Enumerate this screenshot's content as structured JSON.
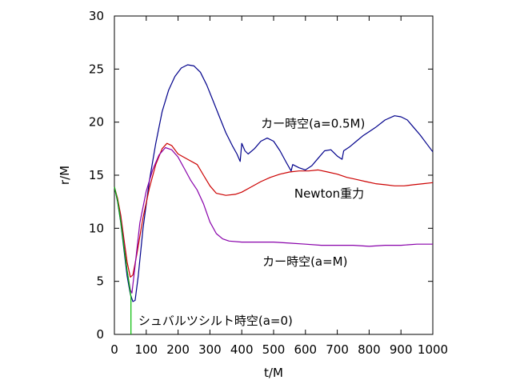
{
  "chart_data": {
    "type": "line",
    "title": "",
    "xlabel": "t/M",
    "ylabel": "r/M",
    "xlim": [
      0,
      1000
    ],
    "ylim": [
      0,
      30
    ],
    "xticks": [
      0,
      100,
      200,
      300,
      400,
      500,
      600,
      700,
      800,
      900,
      1000
    ],
    "yticks": [
      0,
      5,
      10,
      15,
      20,
      25,
      30
    ],
    "grid": false,
    "legend": "none",
    "series": [
      {
        "name": "カー時空(a=0.5M)",
        "color": "#00008b",
        "points": [
          [
            0,
            13.9
          ],
          [
            10,
            12.5
          ],
          [
            20,
            10.5
          ],
          [
            30,
            8.0
          ],
          [
            40,
            5.5
          ],
          [
            50,
            3.8
          ],
          [
            58,
            3.1
          ],
          [
            65,
            3.2
          ],
          [
            75,
            5.5
          ],
          [
            90,
            10.0
          ],
          [
            110,
            14.5
          ],
          [
            130,
            18.0
          ],
          [
            150,
            21.0
          ],
          [
            170,
            23.0
          ],
          [
            190,
            24.3
          ],
          [
            210,
            25.1
          ],
          [
            230,
            25.4
          ],
          [
            250,
            25.3
          ],
          [
            270,
            24.7
          ],
          [
            290,
            23.5
          ],
          [
            310,
            22.0
          ],
          [
            330,
            20.5
          ],
          [
            350,
            19.0
          ],
          [
            370,
            17.8
          ],
          [
            385,
            17.0
          ],
          [
            395,
            16.3
          ],
          [
            400,
            18.0
          ],
          [
            410,
            17.3
          ],
          [
            420,
            17.0
          ],
          [
            440,
            17.5
          ],
          [
            460,
            18.2
          ],
          [
            480,
            18.5
          ],
          [
            500,
            18.2
          ],
          [
            520,
            17.3
          ],
          [
            540,
            16.2
          ],
          [
            555,
            15.4
          ],
          [
            560,
            16.0
          ],
          [
            580,
            15.7
          ],
          [
            600,
            15.5
          ],
          [
            620,
            15.9
          ],
          [
            640,
            16.6
          ],
          [
            660,
            17.3
          ],
          [
            680,
            17.4
          ],
          [
            700,
            16.8
          ],
          [
            715,
            16.5
          ],
          [
            720,
            17.3
          ],
          [
            740,
            17.7
          ],
          [
            760,
            18.2
          ],
          [
            780,
            18.7
          ],
          [
            800,
            19.1
          ],
          [
            820,
            19.5
          ],
          [
            850,
            20.2
          ],
          [
            880,
            20.6
          ],
          [
            900,
            20.5
          ],
          [
            920,
            20.2
          ],
          [
            940,
            19.5
          ],
          [
            960,
            18.8
          ],
          [
            980,
            18.0
          ],
          [
            1000,
            17.2
          ]
        ]
      },
      {
        "name": "Newton重力",
        "color": "#cc0000",
        "points": [
          [
            0,
            13.9
          ],
          [
            10,
            12.8
          ],
          [
            20,
            11.2
          ],
          [
            30,
            9.0
          ],
          [
            40,
            6.8
          ],
          [
            50,
            5.4
          ],
          [
            58,
            5.6
          ],
          [
            70,
            7.5
          ],
          [
            90,
            11.0
          ],
          [
            110,
            13.8
          ],
          [
            130,
            16.0
          ],
          [
            150,
            17.5
          ],
          [
            165,
            18.0
          ],
          [
            180,
            17.8
          ],
          [
            200,
            17.0
          ],
          [
            230,
            16.5
          ],
          [
            260,
            16.0
          ],
          [
            280,
            15.0
          ],
          [
            300,
            14.0
          ],
          [
            320,
            13.3
          ],
          [
            350,
            13.1
          ],
          [
            380,
            13.2
          ],
          [
            400,
            13.4
          ],
          [
            430,
            13.9
          ],
          [
            460,
            14.4
          ],
          [
            490,
            14.8
          ],
          [
            520,
            15.1
          ],
          [
            550,
            15.3
          ],
          [
            580,
            15.4
          ],
          [
            610,
            15.4
          ],
          [
            640,
            15.5
          ],
          [
            670,
            15.3
          ],
          [
            700,
            15.1
          ],
          [
            730,
            14.8
          ],
          [
            760,
            14.6
          ],
          [
            790,
            14.4
          ],
          [
            820,
            14.2
          ],
          [
            850,
            14.1
          ],
          [
            880,
            14.0
          ],
          [
            910,
            14.0
          ],
          [
            940,
            14.1
          ],
          [
            970,
            14.2
          ],
          [
            1000,
            14.3
          ]
        ]
      },
      {
        "name": "カー時空(a=M)",
        "color": "#8800aa",
        "points": [
          [
            0,
            13.9
          ],
          [
            10,
            12.6
          ],
          [
            20,
            10.8
          ],
          [
            30,
            8.5
          ],
          [
            40,
            6.0
          ],
          [
            50,
            4.2
          ],
          [
            55,
            3.9
          ],
          [
            65,
            6.5
          ],
          [
            80,
            10.5
          ],
          [
            100,
            13.5
          ],
          [
            120,
            15.5
          ],
          [
            140,
            16.9
          ],
          [
            160,
            17.6
          ],
          [
            180,
            17.4
          ],
          [
            200,
            16.7
          ],
          [
            220,
            15.6
          ],
          [
            240,
            14.5
          ],
          [
            260,
            13.6
          ],
          [
            280,
            12.3
          ],
          [
            300,
            10.6
          ],
          [
            320,
            9.5
          ],
          [
            340,
            9.0
          ],
          [
            360,
            8.8
          ],
          [
            400,
            8.7
          ],
          [
            450,
            8.7
          ],
          [
            500,
            8.7
          ],
          [
            550,
            8.6
          ],
          [
            600,
            8.5
          ],
          [
            650,
            8.4
          ],
          [
            700,
            8.4
          ],
          [
            750,
            8.4
          ],
          [
            800,
            8.3
          ],
          [
            850,
            8.4
          ],
          [
            900,
            8.4
          ],
          [
            950,
            8.5
          ],
          [
            1000,
            8.5
          ]
        ]
      },
      {
        "name": "シュバルツシルト時空(a=0)",
        "color": "#00bb00",
        "points": [
          [
            0,
            13.9
          ],
          [
            10,
            12.6
          ],
          [
            20,
            10.6
          ],
          [
            30,
            8.2
          ],
          [
            40,
            6.0
          ],
          [
            48,
            4.4
          ],
          [
            52,
            3.5
          ],
          [
            52,
            0
          ]
        ]
      }
    ],
    "annotations": [
      {
        "text": "カー時空(a=0.5M)",
        "x": 460,
        "y": 19.5
      },
      {
        "text": "Newton重力",
        "x": 565,
        "y": 12.9
      },
      {
        "text": "カー時空(a=M)",
        "x": 465,
        "y": 6.5
      },
      {
        "text": "シュバルツシルト時空(a=0)",
        "x": 75,
        "y": 0.9
      }
    ]
  }
}
